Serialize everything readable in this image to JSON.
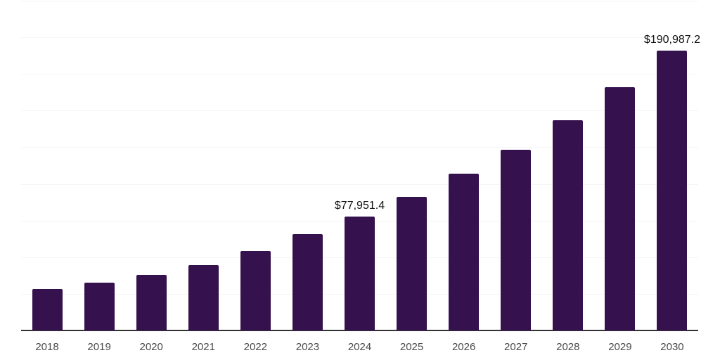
{
  "chart_data": {
    "type": "bar",
    "categories": [
      "2018",
      "2019",
      "2020",
      "2021",
      "2022",
      "2023",
      "2024",
      "2025",
      "2026",
      "2027",
      "2028",
      "2029",
      "2030"
    ],
    "values": [
      28400,
      32600,
      37900,
      44800,
      54400,
      65800,
      77951.4,
      91200,
      106900,
      123500,
      143400,
      166100,
      190987.2
    ],
    "labeled_points": [
      {
        "category": "2024",
        "label": "$77,951.4"
      },
      {
        "category": "2030",
        "label": "$190,987.2"
      }
    ],
    "ylim": [
      0,
      225000
    ],
    "gridline_step": 25000,
    "grid_on": true,
    "legend": "none",
    "xlabel": "",
    "ylabel": "",
    "colors": {
      "bar_fill": "#35114d",
      "gridline": "#f5f5f5",
      "axis_line": "#333333",
      "tick_label": "#4a4a4a",
      "data_label": "#111111",
      "background": "#ffffff"
    }
  }
}
